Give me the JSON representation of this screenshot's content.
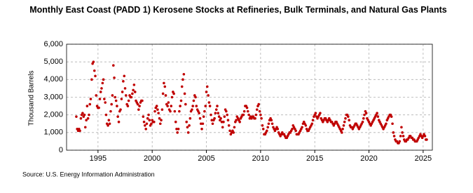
{
  "chart_data": {
    "type": "scatter",
    "title": "Monthly East Coast (PADD 1) Kerosene Stocks at Refineries, Bulk Terminals, and Natural Gas Plants",
    "y_label": "Thousand Barrels",
    "source": "Source: U.S. Energy Information Administration",
    "color": "#c00000",
    "grid": true,
    "xlim": [
      1992.1,
      2025.85
    ],
    "xticks": [
      1995,
      2000,
      2005,
      2010,
      2015,
      2020,
      2025
    ],
    "ylim": [
      0,
      6000
    ],
    "yticks": [
      0,
      {
        "value": 1000,
        "label": "1,000"
      },
      {
        "value": 2000,
        "label": "2,000"
      },
      {
        "value": 3000,
        "label": "3,000"
      },
      {
        "value": 4000,
        "label": "4,000"
      },
      {
        "value": 5000,
        "label": "5,000"
      },
      {
        "value": 6000,
        "label": "6,000"
      }
    ],
    "x": [
      1993,
      1993.08,
      1993.17,
      1993.25,
      1993.33,
      1993.42,
      1993.5,
      1993.58,
      1993.67,
      1993.75,
      1993.83,
      1993.92,
      1994,
      1994.08,
      1994.17,
      1994.25,
      1994.33,
      1994.42,
      1994.5,
      1994.58,
      1994.67,
      1994.75,
      1994.83,
      1994.92,
      1995,
      1995.08,
      1995.17,
      1995.25,
      1995.33,
      1995.42,
      1995.5,
      1995.58,
      1995.67,
      1995.75,
      1995.83,
      1995.92,
      1996,
      1996.08,
      1996.17,
      1996.25,
      1996.33,
      1996.42,
      1996.5,
      1996.58,
      1996.67,
      1996.75,
      1996.83,
      1996.92,
      1997,
      1997.08,
      1997.17,
      1997.25,
      1997.33,
      1997.42,
      1997.5,
      1997.58,
      1997.67,
      1997.75,
      1997.83,
      1997.92,
      1998,
      1998.08,
      1998.17,
      1998.25,
      1998.33,
      1998.42,
      1998.5,
      1998.58,
      1998.67,
      1998.75,
      1998.83,
      1998.92,
      1999,
      1999.08,
      1999.17,
      1999.25,
      1999.33,
      1999.42,
      1999.5,
      1999.58,
      1999.67,
      1999.75,
      1999.83,
      1999.92,
      2000,
      2000.08,
      2000.17,
      2000.25,
      2000.33,
      2000.42,
      2000.5,
      2000.58,
      2000.67,
      2000.75,
      2000.83,
      2000.92,
      2001,
      2001.08,
      2001.17,
      2001.25,
      2001.33,
      2001.42,
      2001.5,
      2001.58,
      2001.67,
      2001.75,
      2001.83,
      2001.92,
      2002,
      2002.08,
      2002.17,
      2002.25,
      2002.33,
      2002.42,
      2002.5,
      2002.58,
      2002.67,
      2002.75,
      2002.83,
      2002.92,
      2003,
      2003.08,
      2003.17,
      2003.25,
      2003.33,
      2003.42,
      2003.5,
      2003.58,
      2003.67,
      2003.75,
      2003.83,
      2003.92,
      2004,
      2004.08,
      2004.17,
      2004.25,
      2004.33,
      2004.42,
      2004.5,
      2004.58,
      2004.67,
      2004.75,
      2004.83,
      2004.92,
      2005,
      2005.08,
      2005.17,
      2005.25,
      2005.33,
      2005.42,
      2005.5,
      2005.58,
      2005.67,
      2005.75,
      2005.83,
      2005.92,
      2006,
      2006.08,
      2006.17,
      2006.25,
      2006.33,
      2006.42,
      2006.5,
      2006.58,
      2006.67,
      2006.75,
      2006.83,
      2006.92,
      2007,
      2007.08,
      2007.17,
      2007.25,
      2007.33,
      2007.42,
      2007.5,
      2007.58,
      2007.67,
      2007.75,
      2007.83,
      2007.92,
      2008,
      2008.08,
      2008.17,
      2008.25,
      2008.33,
      2008.42,
      2008.5,
      2008.58,
      2008.67,
      2008.75,
      2008.83,
      2008.92,
      2009,
      2009.08,
      2009.17,
      2009.25,
      2009.33,
      2009.42,
      2009.5,
      2009.58,
      2009.67,
      2009.75,
      2009.83,
      2009.92,
      2010,
      2010.08,
      2010.17,
      2010.25,
      2010.33,
      2010.42,
      2010.5,
      2010.58,
      2010.67,
      2010.75,
      2010.83,
      2010.92,
      2011,
      2011.08,
      2011.17,
      2011.25,
      2011.33,
      2011.42,
      2011.5,
      2011.58,
      2011.67,
      2011.75,
      2011.83,
      2011.92,
      2012,
      2012.08,
      2012.17,
      2012.25,
      2012.33,
      2012.42,
      2012.5,
      2012.58,
      2012.67,
      2012.75,
      2012.83,
      2012.92,
      2013,
      2013.08,
      2013.17,
      2013.25,
      2013.33,
      2013.42,
      2013.5,
      2013.58,
      2013.67,
      2013.75,
      2013.83,
      2013.92,
      2014,
      2014.08,
      2014.17,
      2014.25,
      2014.33,
      2014.42,
      2014.5,
      2014.58,
      2014.67,
      2014.75,
      2014.83,
      2014.92,
      2015,
      2015.08,
      2015.17,
      2015.25,
      2015.33,
      2015.42,
      2015.5,
      2015.58,
      2015.67,
      2015.75,
      2015.83,
      2015.92,
      2016,
      2016.08,
      2016.17,
      2016.25,
      2016.33,
      2016.42,
      2016.5,
      2016.58,
      2016.67,
      2016.75,
      2016.83,
      2016.92,
      2017,
      2017.08,
      2017.17,
      2017.25,
      2017.33,
      2017.42,
      2017.5,
      2017.58,
      2017.67,
      2017.75,
      2017.83,
      2017.92,
      2018,
      2018.08,
      2018.17,
      2018.25,
      2018.33,
      2018.42,
      2018.5,
      2018.58,
      2018.67,
      2018.75,
      2018.83,
      2018.92,
      2019,
      2019.08,
      2019.17,
      2019.25,
      2019.33,
      2019.42,
      2019.5,
      2019.58,
      2019.67,
      2019.75,
      2019.83,
      2019.92,
      2020,
      2020.08,
      2020.17,
      2020.25,
      2020.33,
      2020.42,
      2020.5,
      2020.58,
      2020.67,
      2020.75,
      2020.83,
      2020.92,
      2021,
      2021.08,
      2021.17,
      2021.25,
      2021.33,
      2021.42,
      2021.5,
      2021.58,
      2021.67,
      2021.75,
      2021.83,
      2021.92,
      2022,
      2022.08,
      2022.17,
      2022.25,
      2022.33,
      2022.42,
      2022.5,
      2022.58,
      2022.67,
      2022.75,
      2022.83,
      2022.92,
      2023,
      2023.08,
      2023.17,
      2023.25,
      2023.33,
      2023.42,
      2023.5,
      2023.58,
      2023.67,
      2023.75,
      2023.83,
      2023.92,
      2024,
      2024.08,
      2024.17,
      2024.25,
      2024.33,
      2024.42,
      2024.5,
      2024.58,
      2024.67,
      2024.75,
      2024.83,
      2024.92,
      2025,
      2025.08,
      2025.17,
      2025.25,
      2025.33
    ],
    "values": [
      1900,
      1200,
      1100,
      1200,
      1100,
      1800,
      2000,
      2100,
      1900,
      2000,
      1300,
      1700,
      2500,
      1800,
      2000,
      2600,
      2900,
      4000,
      4900,
      5000,
      4500,
      4200,
      3100,
      2500,
      2400,
      2400,
      2900,
      3300,
      3500,
      3800,
      4000,
      2900,
      2700,
      2000,
      1500,
      1400,
      1700,
      1500,
      2200,
      2600,
      3100,
      4800,
      4100,
      3000,
      2800,
      2500,
      1900,
      1600,
      2200,
      2300,
      2900,
      3300,
      3900,
      4200,
      3500,
      3100,
      2600,
      2500,
      2800,
      3100,
      3000,
      3000,
      3200,
      3400,
      3700,
      3300,
      2800,
      2700,
      2600,
      2300,
      2500,
      2700,
      2800,
      2800,
      1900,
      1600,
      1400,
      1200,
      1500,
      1800,
      2000,
      1700,
      1400,
      1500,
      1700,
      1600,
      1600,
      2200,
      2400,
      2500,
      2300,
      2100,
      1800,
      1500,
      1700,
      2300,
      3200,
      3800,
      3600,
      3100,
      2600,
      2500,
      2700,
      2300,
      2200,
      2500,
      3000,
      3300,
      3200,
      2200,
      1600,
      1200,
      1000,
      1200,
      2200,
      2500,
      2800,
      3600,
      4000,
      4300,
      3200,
      2600,
      1600,
      1300,
      1000,
      1400,
      1800,
      2200,
      2300,
      2500,
      2800,
      3100,
      3000,
      2500,
      2300,
      2200,
      2100,
      1800,
      1500,
      1200,
      1500,
      1900,
      2200,
      2500,
      3300,
      3600,
      3100,
      2700,
      2500,
      2000,
      1700,
      1500,
      1700,
      1800,
      2100,
      2300,
      2500,
      2100,
      1900,
      1700,
      1800,
      1600,
      1300,
      1600,
      1900,
      2300,
      2200,
      2000,
      1700,
      1400,
      1100,
      900,
      1000,
      1100,
      1000,
      1300,
      1600,
      1700,
      1900,
      1800,
      1700,
      1600,
      1800,
      1900,
      2000,
      2000,
      2200,
      2500,
      2500,
      2400,
      2200,
      2000,
      1800,
      1900,
      1800,
      1900,
      1900,
      1800,
      1800,
      2000,
      2300,
      2500,
      2600,
      2200,
      2000,
      1800,
      1400,
      1200,
      900,
      900,
      1000,
      1100,
      1300,
      1500,
      1700,
      1800,
      1700,
      1500,
      1300,
      1200,
      1100,
      1200,
      1300,
      1200,
      1000,
      900,
      800,
      900,
      1000,
      900,
      900,
      800,
      700,
      700,
      800,
      900,
      1000,
      1000,
      1100,
      1200,
      1400,
      1300,
      1200,
      1100,
      900,
      900,
      900,
      1000,
      1100,
      1200,
      1300,
      1500,
      1600,
      1500,
      1400,
      1200,
      1100,
      1100,
      1200,
      1300,
      1400,
      1500,
      1700,
      1900,
      2000,
      2100,
      1900,
      1800,
      1900,
      2000,
      2100,
      1800,
      1700,
      1600,
      1700,
      1800,
      1800,
      1700,
      1600,
      1700,
      1800,
      1700,
      1600,
      1600,
      1500,
      1400,
      1500,
      1600,
      1600,
      1500,
      1400,
      1300,
      1200,
      1100,
      1000,
      1200,
      1400,
      1600,
      1800,
      2000,
      2000,
      1900,
      1700,
      1400,
      1300,
      1300,
      1200,
      1300,
      1400,
      1500,
      1500,
      1400,
      1300,
      1200,
      1300,
      1400,
      1500,
      1600,
      1800,
      2000,
      2200,
      2100,
      1800,
      1700,
      1600,
      1500,
      1400,
      1500,
      1600,
      1700,
      1800,
      1900,
      2000,
      2100,
      1900,
      1700,
      1600,
      1500,
      1400,
      1300,
      1200,
      1300,
      1400,
      1500,
      1700,
      1800,
      1900,
      2000,
      2000,
      1900,
      1500,
      1000,
      800,
      600,
      500,
      500,
      400,
      400,
      500,
      800,
      1300,
      1000,
      800,
      600,
      500,
      500,
      600,
      600,
      700,
      800,
      800,
      700,
      700,
      600,
      600,
      500,
      500,
      500,
      600,
      700,
      800,
      900,
      800,
      700,
      800,
      900,
      800,
      600,
      600
    ]
  }
}
